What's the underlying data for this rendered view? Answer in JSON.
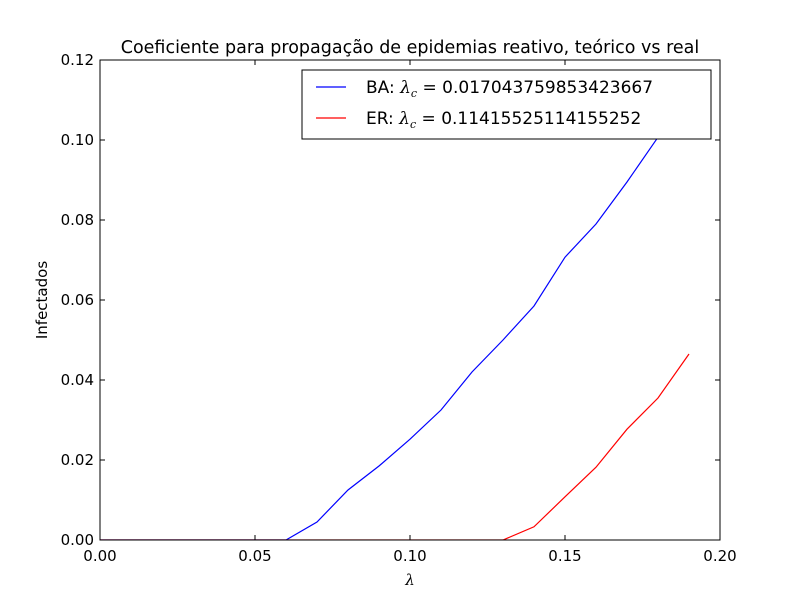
{
  "chart_data": {
    "type": "line",
    "title": "Coeficiente para propagação de epidemias reativo, teórico vs real",
    "xlabel": "λ",
    "ylabel": "Infectados",
    "xlim": [
      0.0,
      0.2
    ],
    "ylim": [
      0.0,
      0.12
    ],
    "xticks": [
      "0.00",
      "0.05",
      "0.10",
      "0.15",
      "0.20"
    ],
    "yticks": [
      "0.00",
      "0.02",
      "0.04",
      "0.06",
      "0.08",
      "0.10",
      "0.12"
    ],
    "grid": false,
    "legend_position": "top-right",
    "series": [
      {
        "name": "BA",
        "lambda_c": "0.017043759853423667",
        "color": "#0000ff",
        "x": [
          0.0,
          0.01,
          0.02,
          0.03,
          0.04,
          0.05,
          0.06,
          0.07,
          0.08,
          0.09,
          0.1,
          0.11,
          0.12,
          0.13,
          0.14,
          0.15,
          0.16,
          0.17,
          0.18,
          0.19
        ],
        "y": [
          0.0,
          0.0,
          0.0,
          0.0,
          0.0,
          0.0,
          0.0,
          0.0045,
          0.0125,
          0.0185,
          0.0252,
          0.0325,
          0.042,
          0.05,
          0.0585,
          0.0707,
          0.079,
          0.0895,
          0.1007,
          0.1105
        ]
      },
      {
        "name": "ER",
        "lambda_c": "0.11415525114155252",
        "color": "#ff0000",
        "x": [
          0.0,
          0.01,
          0.02,
          0.03,
          0.04,
          0.05,
          0.06,
          0.07,
          0.08,
          0.09,
          0.1,
          0.11,
          0.12,
          0.13,
          0.14,
          0.15,
          0.16,
          0.17,
          0.18,
          0.19
        ],
        "y": [
          0.0,
          0.0,
          0.0,
          0.0,
          0.0,
          0.0,
          0.0,
          0.0,
          0.0,
          0.0,
          0.0,
          0.0,
          0.0,
          0.0,
          0.0033,
          0.0108,
          0.0182,
          0.0277,
          0.0355,
          0.0465
        ]
      }
    ]
  }
}
